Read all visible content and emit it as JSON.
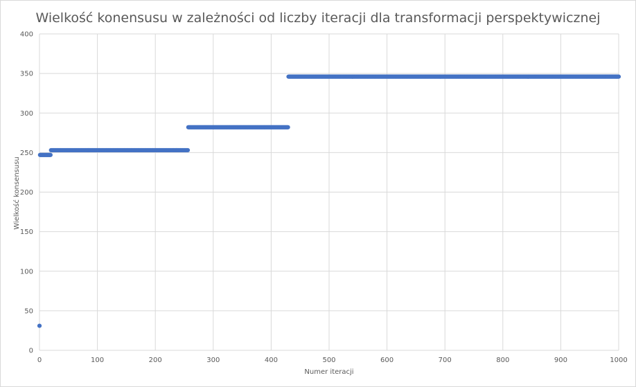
{
  "chart_data": {
    "type": "scatter",
    "title": "Wielkość konensusu w zależności od liczby iteracji dla transformacji perspektywicznej",
    "xlabel": "Numer iteracji",
    "ylabel": "Wielkość konsensusu",
    "xlim": [
      0,
      1000
    ],
    "ylim": [
      0,
      400
    ],
    "xticks": [
      0,
      100,
      200,
      300,
      400,
      500,
      600,
      700,
      800,
      900,
      1000
    ],
    "yticks": [
      0,
      50,
      100,
      150,
      200,
      250,
      300,
      350,
      400
    ],
    "grid": true,
    "legend": "none",
    "color": "#4472C4",
    "series": [
      {
        "segments": [
          {
            "x_start": 0,
            "x_end": 0,
            "y": 31
          },
          {
            "x_start": 1,
            "x_end": 19,
            "y": 247
          },
          {
            "x_start": 20,
            "x_end": 256,
            "y": 253
          },
          {
            "x_start": 257,
            "x_end": 429,
            "y": 282
          },
          {
            "x_start": 430,
            "x_end": 1000,
            "y": 346
          }
        ]
      }
    ]
  }
}
